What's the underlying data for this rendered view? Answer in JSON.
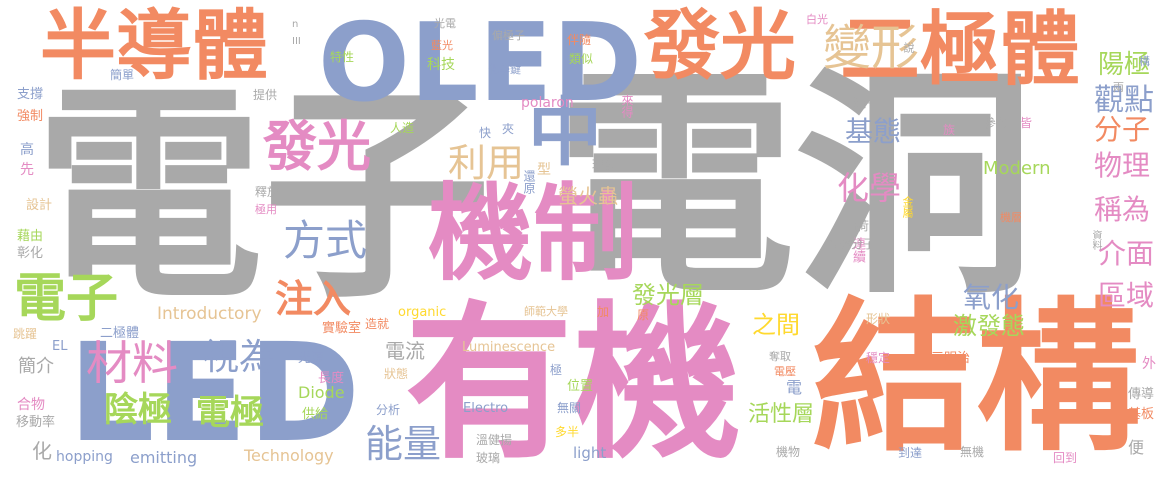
{
  "colors": {
    "gray": "#a9a9a9",
    "orange": "#f28a62",
    "blue": "#8c9fcb",
    "pink": "#e48bc3",
    "green": "#a6d75a",
    "yellow": "#ffd92f",
    "tan": "#e6c494"
  },
  "words": [
    {
      "text": "電子",
      "color": "gray"
    },
    {
      "text": "電洞",
      "color": "gray"
    },
    {
      "text": "有機",
      "color": "pink"
    },
    {
      "text": "結構",
      "color": "orange"
    },
    {
      "text": "LED",
      "color": "blue"
    },
    {
      "text": "OLED",
      "color": "blue"
    },
    {
      "text": "機制",
      "color": "pink"
    },
    {
      "text": "半導體",
      "color": "orange"
    },
    {
      "text": "二極體",
      "color": "orange"
    },
    {
      "text": "發光",
      "color": "orange"
    },
    {
      "text": "中",
      "color": "blue"
    },
    {
      "text": "變形",
      "color": "tan"
    },
    {
      "text": "發光",
      "color": "pink"
    },
    {
      "text": "方式",
      "color": "blue"
    },
    {
      "text": "電子",
      "color": "green"
    },
    {
      "text": "注入",
      "color": "orange"
    },
    {
      "text": "材料",
      "color": "pink"
    },
    {
      "text": "視為",
      "color": "blue"
    },
    {
      "text": "陰極",
      "color": "green"
    },
    {
      "text": "電極",
      "color": "green"
    },
    {
      "text": "能量",
      "color": "blue"
    },
    {
      "text": "利用",
      "color": "tan"
    },
    {
      "text": "基態",
      "color": "blue"
    },
    {
      "text": "化學",
      "color": "pink"
    },
    {
      "text": "觀點",
      "color": "blue"
    },
    {
      "text": "陽極",
      "color": "green"
    },
    {
      "text": "分子",
      "color": "orange"
    },
    {
      "text": "物理",
      "color": "pink"
    },
    {
      "text": "稱為",
      "color": "pink"
    },
    {
      "text": "介面",
      "color": "pink"
    },
    {
      "text": "區域",
      "color": "pink"
    },
    {
      "text": "氧化",
      "color": "blue"
    },
    {
      "text": "激發態",
      "color": "green"
    },
    {
      "text": "發光層",
      "color": "green"
    },
    {
      "text": "活性層",
      "color": "green"
    },
    {
      "text": "之間",
      "color": "yellow"
    },
    {
      "text": "電流",
      "color": "gray"
    },
    {
      "text": "螢火蟲",
      "color": "tan"
    },
    {
      "text": "Modern",
      "color": "green"
    },
    {
      "text": "Introductory",
      "color": "tan"
    },
    {
      "text": "Technology",
      "color": "tan"
    },
    {
      "text": "emitting",
      "color": "blue"
    },
    {
      "text": "Diode",
      "color": "green"
    },
    {
      "text": "Luminescence",
      "color": "tan"
    },
    {
      "text": "Electro",
      "color": "blue"
    },
    {
      "text": "light",
      "color": "blue"
    },
    {
      "text": "organic",
      "color": "yellow"
    },
    {
      "text": "polaron",
      "color": "pink"
    },
    {
      "text": "hopping",
      "color": "blue"
    },
    {
      "text": "簡介",
      "color": "gray"
    },
    {
      "text": "合物",
      "color": "pink"
    },
    {
      "text": "移動率",
      "color": "gray"
    },
    {
      "text": "化",
      "color": "gray"
    },
    {
      "text": "跳躍",
      "color": "tan"
    },
    {
      "text": "EL",
      "color": "blue"
    },
    {
      "text": "二極體",
      "color": "blue"
    },
    {
      "text": "光源",
      "color": "blue"
    },
    {
      "text": "長度",
      "color": "pink"
    },
    {
      "text": "狀態",
      "color": "tan"
    },
    {
      "text": "供給",
      "color": "green"
    },
    {
      "text": "分析",
      "color": "blue"
    },
    {
      "text": "溫健揚",
      "color": "gray"
    },
    {
      "text": "玻璃",
      "color": "gray"
    },
    {
      "text": "多半",
      "color": "yellow"
    },
    {
      "text": "無關",
      "color": "blue"
    },
    {
      "text": "位置",
      "color": "green"
    },
    {
      "text": "機物",
      "color": "gray"
    },
    {
      "text": "電",
      "color": "blue"
    },
    {
      "text": "電壓",
      "color": "orange"
    },
    {
      "text": "奪取",
      "color": "gray"
    },
    {
      "text": "穩定",
      "color": "pink"
    },
    {
      "text": "三明治",
      "color": "orange"
    },
    {
      "text": "形狀",
      "color": "tan"
    },
    {
      "text": "到達",
      "color": "blue"
    },
    {
      "text": "無機",
      "color": "gray"
    },
    {
      "text": "回到",
      "color": "pink"
    },
    {
      "text": "傳導",
      "color": "gray"
    },
    {
      "text": "基板",
      "color": "orange"
    },
    {
      "text": "外",
      "color": "pink"
    },
    {
      "text": "便",
      "color": "gray"
    },
    {
      "text": "實驗室",
      "color": "orange"
    },
    {
      "text": "造就",
      "color": "orange"
    },
    {
      "text": "師範大學",
      "color": "tan"
    },
    {
      "text": "加",
      "color": "orange"
    },
    {
      "text": "原",
      "color": "orange"
    },
    {
      "text": "極",
      "color": "blue"
    },
    {
      "text": "連續",
      "color": "pink"
    },
    {
      "text": "金屬",
      "color": "yellow"
    },
    {
      "text": "機層",
      "color": "orange"
    },
    {
      "text": "有機分子",
      "color": "gray"
    },
    {
      "text": "電荷",
      "color": "gray"
    },
    {
      "text": "資料",
      "color": "gray"
    },
    {
      "text": "參考",
      "color": "gray"
    },
    {
      "text": "皆",
      "color": "pink"
    },
    {
      "text": "族",
      "color": "pink"
    },
    {
      "text": "載子",
      "color": "gray"
    },
    {
      "text": "人造",
      "color": "green"
    },
    {
      "text": "快",
      "color": "blue"
    },
    {
      "text": "夾",
      "color": "blue"
    },
    {
      "text": "現象",
      "color": "gray"
    },
    {
      "text": "型",
      "color": "tan"
    },
    {
      "text": "還原",
      "color": "blue"
    },
    {
      "text": "來得",
      "color": "pink"
    },
    {
      "text": "光電",
      "color": "gray"
    },
    {
      "text": "藍光",
      "color": "orange"
    },
    {
      "text": "偏極子",
      "color": "gray"
    },
    {
      "text": "白光",
      "color": "pink"
    },
    {
      "text": "伴隨",
      "color": "orange"
    },
    {
      "text": "類似",
      "color": "green"
    },
    {
      "text": "化學鍵",
      "color": "blue"
    },
    {
      "text": "科技",
      "color": "green"
    },
    {
      "text": "特性",
      "color": "green"
    },
    {
      "text": "簡單",
      "color": "blue"
    },
    {
      "text": "支撐",
      "color": "blue"
    },
    {
      "text": "提供",
      "color": "gray"
    },
    {
      "text": "強制",
      "color": "orange"
    },
    {
      "text": "高",
      "color": "blue"
    },
    {
      "text": "先",
      "color": "pink"
    },
    {
      "text": "釋放",
      "color": "gray"
    },
    {
      "text": "極用",
      "color": "pink"
    },
    {
      "text": "設計",
      "color": "tan"
    },
    {
      "text": "藉由",
      "color": "green"
    },
    {
      "text": "彰化",
      "color": "gray"
    },
    {
      "text": "說",
      "color": "gray"
    },
    {
      "text": "構",
      "color": "blue"
    },
    {
      "text": "兩",
      "color": "gray"
    },
    {
      "text": "n",
      "color": "gray"
    },
    {
      "text": "III",
      "color": "gray"
    },
    {
      "text": "V",
      "color": "gray"
    },
    {
      "text": "p",
      "color": "gray"
    }
  ]
}
